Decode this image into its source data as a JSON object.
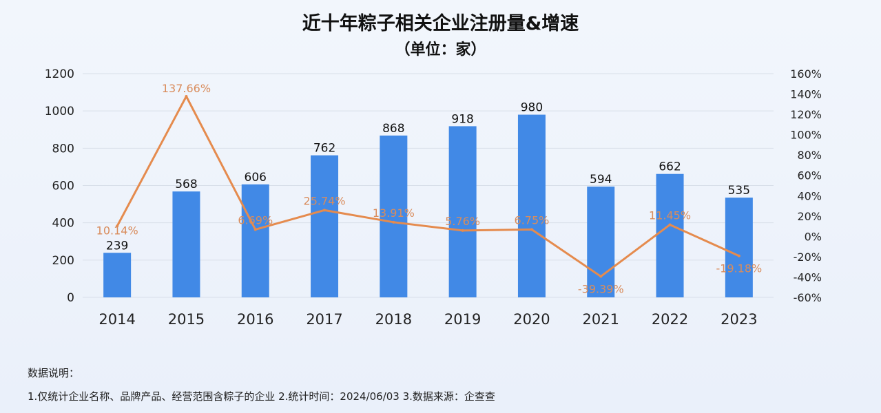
{
  "header": {
    "title": "近十年粽子相关企业注册量&增速",
    "subtitle": "（单位：家）"
  },
  "notes": {
    "heading": "数据说明：",
    "body": "1.仅统计企业名称、品牌产品、经营范围含粽子的企业   2.统计时间：2024/06/03    3.数据来源：企查查"
  },
  "colors": {
    "bar": "#4189e6",
    "line": "#e58b4e",
    "line_label": "#d98c5c",
    "grid": "#d8dfe9",
    "axis_text": "#222222"
  },
  "chart_data": {
    "type": "bar",
    "categories": [
      "2014",
      "2015",
      "2016",
      "2017",
      "2018",
      "2019",
      "2020",
      "2021",
      "2022",
      "2023"
    ],
    "series": [
      {
        "type": "bar",
        "axis": "left",
        "values": [
          239,
          568,
          606,
          762,
          868,
          918,
          980,
          594,
          662,
          535
        ],
        "labels": [
          "239",
          "568",
          "606",
          "762",
          "868",
          "918",
          "980",
          "594",
          "662",
          "535"
        ]
      },
      {
        "type": "line",
        "axis": "right",
        "values": [
          10.14,
          137.66,
          6.69,
          25.74,
          13.91,
          5.76,
          6.75,
          -39.39,
          11.45,
          -19.18
        ],
        "labels": [
          "10.14%",
          "137.66%",
          "6.69%",
          "25.74%",
          "13.91%",
          "5.76%",
          "6.75%",
          "-39.39%",
          "11.45%",
          "-19.18%"
        ]
      }
    ],
    "y_left": {
      "range": [
        0,
        1200
      ],
      "ticks": [
        "0",
        "200",
        "400",
        "600",
        "800",
        "1000",
        "1200"
      ]
    },
    "y_right": {
      "range": [
        -60,
        160
      ],
      "ticks": [
        "-60%",
        "-40%",
        "-20%",
        "0%",
        "20%",
        "40%",
        "60%",
        "80%",
        "100%",
        "120%",
        "140%",
        "160%"
      ]
    },
    "grid": true,
    "legend": "none"
  }
}
